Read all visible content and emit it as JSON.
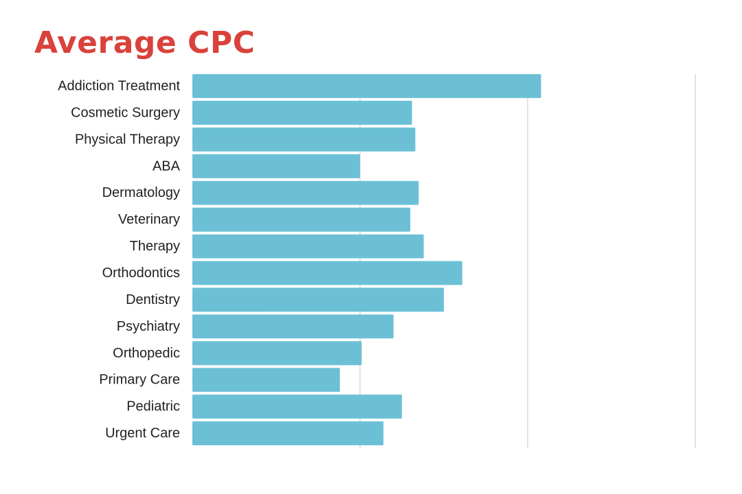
{
  "colors": {
    "title": "#d9423b",
    "bar": "#6cc0d6",
    "grid": "#d8d8d8",
    "label": "#1f1f1f"
  },
  "chart_data": {
    "type": "bar",
    "orientation": "horizontal",
    "title": "Average CPC",
    "xlabel": "",
    "ylabel": "",
    "categories": [
      "Addiction Treatment",
      "Cosmetic Surgery",
      "Physical Therapy",
      "ABA",
      "Dermatology",
      "Veterinary",
      "Therapy",
      "Orthodontics",
      "Dentistry",
      "Psychiatry",
      "Orthopedic",
      "Primary Care",
      "Pediatric",
      "Urgent Care"
    ],
    "values": [
      2.08,
      1.31,
      1.33,
      1.0,
      1.35,
      1.3,
      1.38,
      1.61,
      1.5,
      1.2,
      1.01,
      0.88,
      1.25,
      1.14
    ],
    "xlim": [
      0,
      3
    ],
    "x_gridlines": [
      1,
      2,
      3
    ],
    "x_tick_labels": false,
    "grid": true,
    "legend": "none"
  }
}
